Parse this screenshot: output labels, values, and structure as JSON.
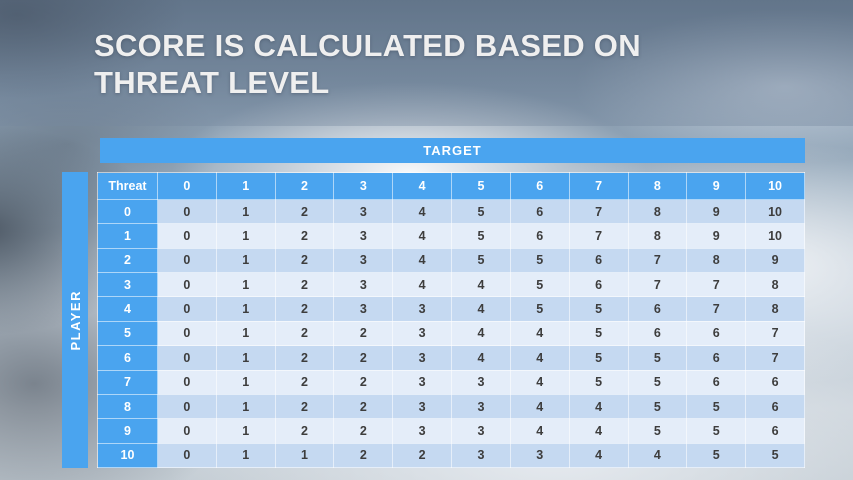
{
  "slide": {
    "title_line1": "SCORE IS CALCULATED BASED ON",
    "title_line2": "THREAT LEVEL"
  },
  "score_matrix": {
    "target_label": "TARGET",
    "player_label": "PLAYER",
    "corner_label": "Threat",
    "column_headers": [
      "0",
      "1",
      "2",
      "3",
      "4",
      "5",
      "6",
      "7",
      "8",
      "9",
      "10"
    ],
    "rows": [
      {
        "threat": "0",
        "values": [
          "0",
          "1",
          "2",
          "3",
          "4",
          "5",
          "6",
          "7",
          "8",
          "9",
          "10"
        ]
      },
      {
        "threat": "1",
        "values": [
          "0",
          "1",
          "2",
          "3",
          "4",
          "5",
          "6",
          "7",
          "8",
          "9",
          "10"
        ]
      },
      {
        "threat": "2",
        "values": [
          "0",
          "1",
          "2",
          "3",
          "4",
          "5",
          "5",
          "6",
          "7",
          "8",
          "9"
        ]
      },
      {
        "threat": "3",
        "values": [
          "0",
          "1",
          "2",
          "3",
          "4",
          "4",
          "5",
          "6",
          "7",
          "7",
          "8"
        ]
      },
      {
        "threat": "4",
        "values": [
          "0",
          "1",
          "2",
          "3",
          "3",
          "4",
          "5",
          "5",
          "6",
          "7",
          "8"
        ]
      },
      {
        "threat": "5",
        "values": [
          "0",
          "1",
          "2",
          "2",
          "3",
          "4",
          "4",
          "5",
          "6",
          "6",
          "7"
        ]
      },
      {
        "threat": "6",
        "values": [
          "0",
          "1",
          "2",
          "2",
          "3",
          "4",
          "4",
          "5",
          "5",
          "6",
          "7"
        ]
      },
      {
        "threat": "7",
        "values": [
          "0",
          "1",
          "2",
          "2",
          "3",
          "3",
          "4",
          "5",
          "5",
          "6",
          "6"
        ]
      },
      {
        "threat": "8",
        "values": [
          "0",
          "1",
          "2",
          "2",
          "3",
          "3",
          "4",
          "4",
          "5",
          "5",
          "6"
        ]
      },
      {
        "threat": "9",
        "values": [
          "0",
          "1",
          "2",
          "2",
          "3",
          "3",
          "4",
          "4",
          "5",
          "5",
          "6"
        ]
      },
      {
        "threat": "10",
        "values": [
          "0",
          "1",
          "1",
          "2",
          "2",
          "3",
          "3",
          "4",
          "4",
          "5",
          "5"
        ]
      }
    ]
  },
  "colors": {
    "accent_blue": "#4AA4EF",
    "band_dark": "#C5D9F1",
    "band_light": "#E4EDF9",
    "header_text": "#FFFFFF",
    "cell_text": "#3D3D3D",
    "title_text": "#EFEFEF"
  }
}
